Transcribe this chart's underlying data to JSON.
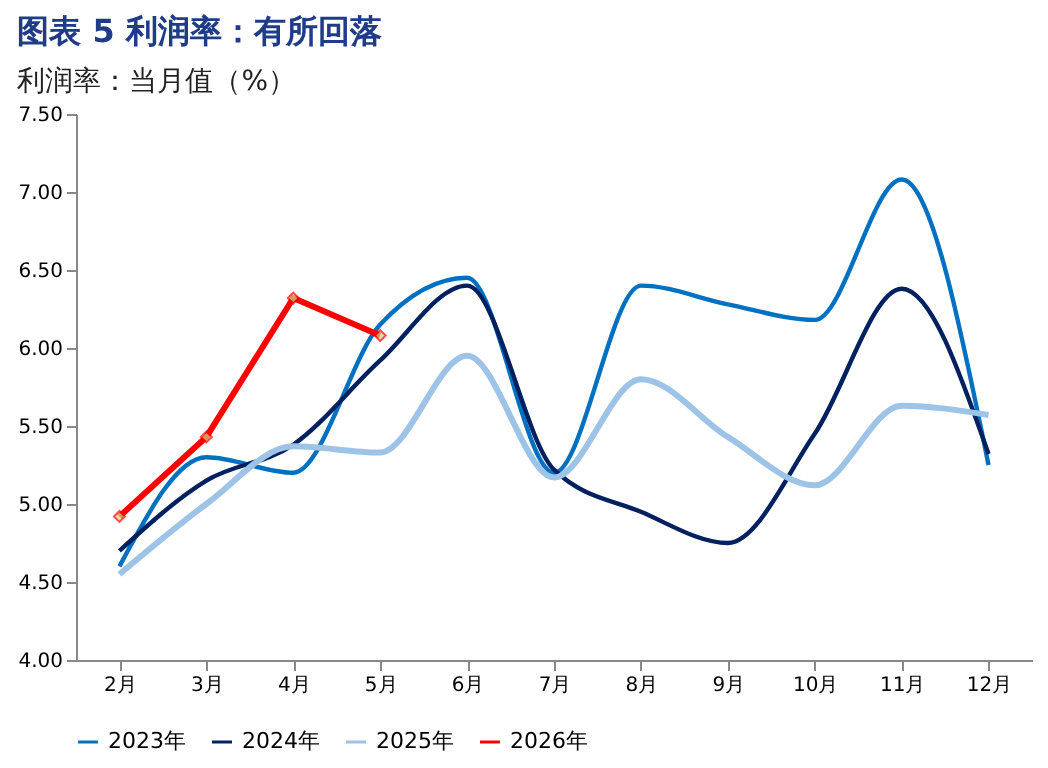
{
  "chart_data": {
    "type": "line",
    "title": "图表 5   利润率：有所回落",
    "subtitle": "利润率：当月值（%）",
    "categories": [
      "2月",
      "3月",
      "4月",
      "5月",
      "6月",
      "7月",
      "8月",
      "9月",
      "10月",
      "11月",
      "12月"
    ],
    "series": [
      {
        "name": "2023年",
        "color": "#0070c0",
        "values": [
          4.6,
          5.3,
          5.2,
          6.15,
          6.45,
          5.2,
          6.4,
          6.28,
          6.18,
          7.08,
          5.25
        ]
      },
      {
        "name": "2024年",
        "color": "#002060",
        "values": [
          4.7,
          5.15,
          5.38,
          5.92,
          6.4,
          5.22,
          4.95,
          4.75,
          5.45,
          6.38,
          5.32
        ]
      },
      {
        "name": "2025年",
        "color": "#9dc3e6",
        "values": [
          4.55,
          5.0,
          5.37,
          5.33,
          5.95,
          5.17,
          5.8,
          5.43,
          5.12,
          5.63,
          5.57
        ]
      },
      {
        "name": "2026年",
        "color": "#ff0000",
        "marker": "diamond",
        "values": [
          4.92,
          5.43,
          6.32,
          6.08,
          null,
          null,
          null,
          null,
          null,
          null,
          null
        ]
      }
    ],
    "ylim": [
      4.0,
      7.5
    ],
    "yticks": [
      {
        "value": 4.0,
        "label": "4.00"
      },
      {
        "value": 4.5,
        "label": "4.50"
      },
      {
        "value": 5.0,
        "label": "5.00"
      },
      {
        "value": 5.5,
        "label": "5.50"
      },
      {
        "value": 6.0,
        "label": "6.00"
      },
      {
        "value": 6.5,
        "label": "6.50"
      },
      {
        "value": 7.0,
        "label": "7.00"
      },
      {
        "value": 7.5,
        "label": "7.50"
      }
    ],
    "grid": false,
    "legend": "bottom",
    "marker": "none"
  }
}
